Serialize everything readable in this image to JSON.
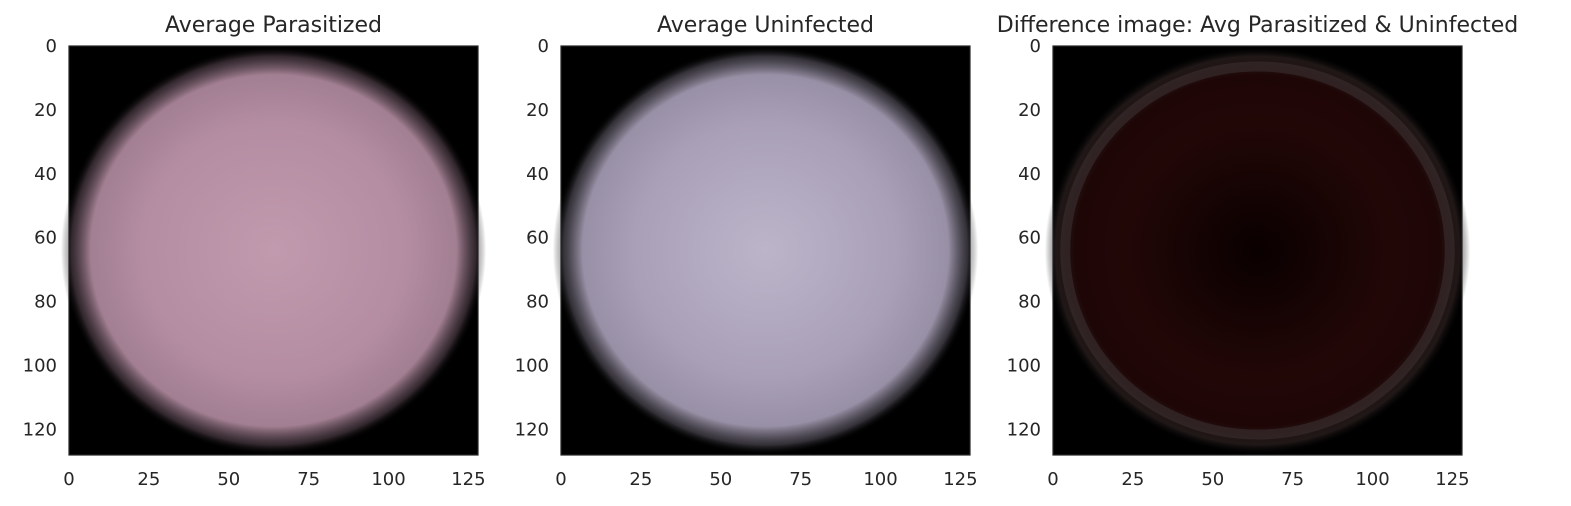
{
  "chart_data": [
    {
      "type": "image",
      "title": "Average Parasitized",
      "xlim": [
        0,
        128
      ],
      "ylim": [
        128,
        0
      ],
      "x_ticks": [
        0,
        25,
        50,
        75,
        100,
        125
      ],
      "y_ticks": [
        0,
        20,
        40,
        60,
        80,
        100,
        120
      ],
      "grid": false,
      "colors": {
        "background": "#000000",
        "disc_center": "#c19aae",
        "disc_mid": "#b48da2",
        "disc_edge": "#5e4a55"
      }
    },
    {
      "type": "image",
      "title": "Average Uninfected",
      "xlim": [
        0,
        128
      ],
      "ylim": [
        128,
        0
      ],
      "x_ticks": [
        0,
        25,
        50,
        75,
        100,
        125
      ],
      "y_ticks": [
        0,
        20,
        40,
        60,
        80,
        100,
        120
      ],
      "grid": false,
      "colors": {
        "background": "#000000",
        "disc_center": "#bcb5c9",
        "disc_mid": "#a9a0b8",
        "disc_edge": "#5f5a66"
      }
    },
    {
      "type": "image",
      "title": "Difference image: Avg Parasitized & Uninfected",
      "xlim": [
        0,
        128
      ],
      "ylim": [
        128,
        0
      ],
      "x_ticks": [
        0,
        25,
        50,
        75,
        100,
        125
      ],
      "y_ticks": [
        0,
        20,
        40,
        60,
        80,
        100,
        120
      ],
      "grid": false,
      "colors": {
        "background": "#000000",
        "disc_center": "#0a0000",
        "disc_mid": "#220707",
        "disc_edge": "#3a2a2a"
      }
    }
  ]
}
